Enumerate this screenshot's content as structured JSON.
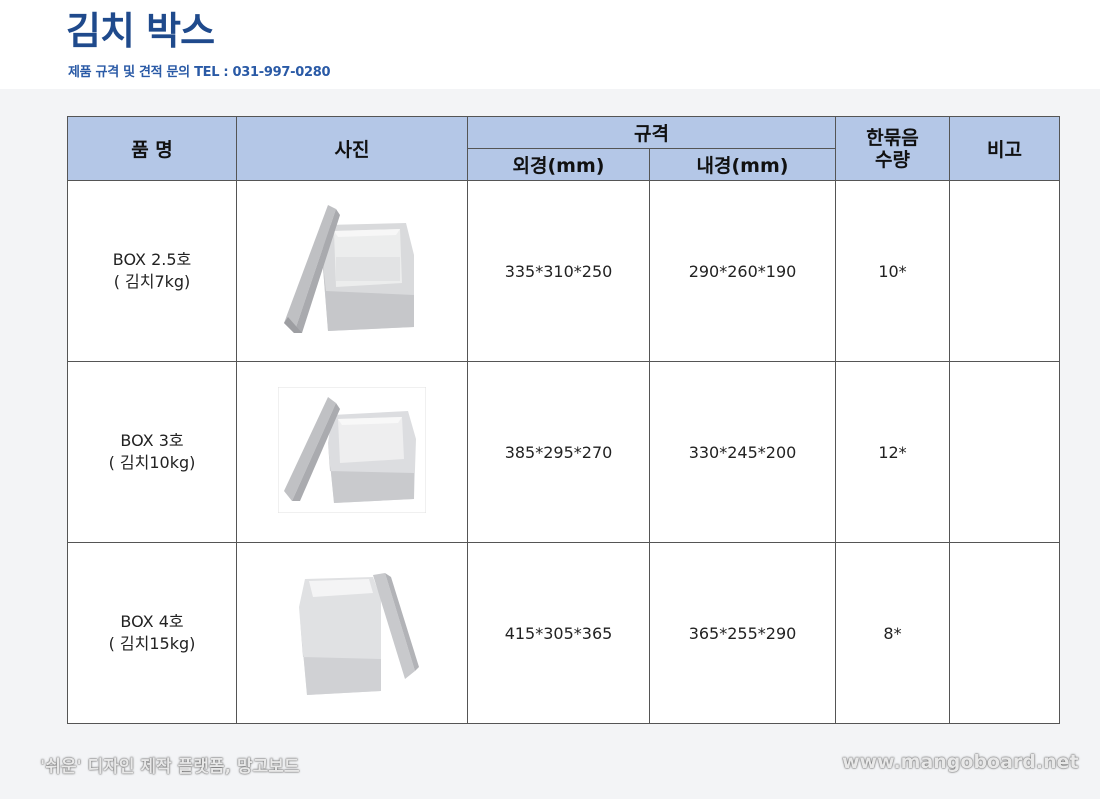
{
  "header": {
    "title": "김치 박스",
    "subtitle": "제품 규격 및 견적  문의 TEL : 031-997-0280"
  },
  "table": {
    "headers": {
      "name": "품 명",
      "photo": "사진",
      "spec": "규격",
      "outer": "외경(mm)",
      "inner": "내경(mm)",
      "qty_line1": "한묶음",
      "qty_line2": "수량",
      "note": "비고"
    },
    "rows": [
      {
        "name_line1": "BOX 2.5호",
        "name_line2": "( 김치7kg)",
        "outer": "335*310*250",
        "inner": "290*260*190",
        "qty": "10*",
        "note": ""
      },
      {
        "name_line1": "BOX 3호",
        "name_line2": "( 김치10kg)",
        "outer": "385*295*270",
        "inner": "330*245*200",
        "qty": "12*",
        "note": ""
      },
      {
        "name_line1": "BOX 4호",
        "name_line2": "( 김치15kg)",
        "outer": "415*305*365",
        "inner": "365*255*290",
        "qty": "8*",
        "note": ""
      }
    ]
  },
  "footer": {
    "left": "'쉬운' 디자인 제작 플랫폼, 망고보드",
    "right": "www.mangoboard.net"
  }
}
